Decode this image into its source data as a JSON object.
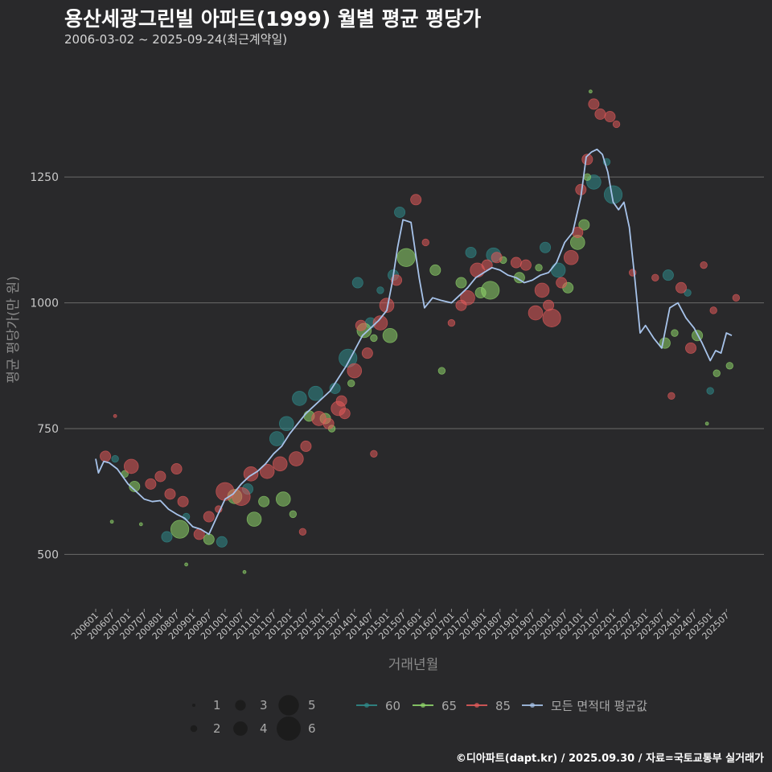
{
  "header": {
    "title": "용산세광그린빌 아파트(1999) 월별 평균 평당가",
    "subtitle": "2006-03-02 ~ 2025-09-24(최근계약일)"
  },
  "footer": {
    "credit": "©디아파트(dapt.kr) / 2025.09.30 / 자료=국토교통부 실거래가"
  },
  "colors": {
    "background": "#29292b",
    "grid": "#6a6a6a",
    "area_60": "#2f8a8a",
    "area_65": "#8ed46a",
    "area_85": "#e05a5a",
    "avg_line": "#a7c3ea"
  },
  "chart_data": {
    "type": "scatter",
    "title": "용산세광그린빌 아파트(1999) 월별 평균 평당가",
    "xlabel": "거래년월",
    "ylabel": "평균 평당가(만 원)",
    "ylim": [
      400,
      1450
    ],
    "yticks": [
      500,
      750,
      1000,
      1250
    ],
    "x_start": "2006-01",
    "x_end": "2025-09",
    "xtick_labels": [
      "200601",
      "200607",
      "200701",
      "200707",
      "200801",
      "200807",
      "200901",
      "200907",
      "201001",
      "201007",
      "201101",
      "201107",
      "201201",
      "201207",
      "201301",
      "201307",
      "201401",
      "201407",
      "201501",
      "201507",
      "201601",
      "201607",
      "201701",
      "201707",
      "201801",
      "201807",
      "201901",
      "201907",
      "202001",
      "202007",
      "202101",
      "202107",
      "202201",
      "202207",
      "202301",
      "202307",
      "202401",
      "202407",
      "202501",
      "202507"
    ],
    "size_legend": {
      "title": "",
      "labels": [
        "1",
        "2",
        "3",
        "4",
        "5",
        "6"
      ]
    },
    "color_legend": [
      {
        "name": "60",
        "color": "#2f8a8a"
      },
      {
        "name": "65",
        "color": "#8ed46a"
      },
      {
        "name": "85",
        "color": "#e05a5a"
      },
      {
        "name": "모든 면적대 평균값",
        "color": "#a7c3ea"
      }
    ],
    "average_line": {
      "name": "모든 면적대 평균값",
      "points": [
        [
          "2006-01",
          690
        ],
        [
          "2006-02",
          662
        ],
        [
          "2006-04",
          685
        ],
        [
          "2006-06",
          682
        ],
        [
          "2006-09",
          670
        ],
        [
          "2007-01",
          640
        ],
        [
          "2007-04",
          625
        ],
        [
          "2007-07",
          610
        ],
        [
          "2007-10",
          605
        ],
        [
          "2008-01",
          607
        ],
        [
          "2008-04",
          590
        ],
        [
          "2008-07",
          580
        ],
        [
          "2008-10",
          572
        ],
        [
          "2009-01",
          555
        ],
        [
          "2009-04",
          550
        ],
        [
          "2009-07",
          540
        ],
        [
          "2009-10",
          575
        ],
        [
          "2010-01",
          610
        ],
        [
          "2010-04",
          620
        ],
        [
          "2010-07",
          640
        ],
        [
          "2010-10",
          655
        ],
        [
          "2011-01",
          665
        ],
        [
          "2011-04",
          680
        ],
        [
          "2011-07",
          700
        ],
        [
          "2011-10",
          715
        ],
        [
          "2012-01",
          740
        ],
        [
          "2012-04",
          760
        ],
        [
          "2012-07",
          780
        ],
        [
          "2012-10",
          795
        ],
        [
          "2013-01",
          810
        ],
        [
          "2013-04",
          825
        ],
        [
          "2013-07",
          850
        ],
        [
          "2013-10",
          875
        ],
        [
          "2014-01",
          905
        ],
        [
          "2014-04",
          935
        ],
        [
          "2014-07",
          950
        ],
        [
          "2014-10",
          965
        ],
        [
          "2015-01",
          985
        ],
        [
          "2015-03",
          1040
        ],
        [
          "2015-05",
          1110
        ],
        [
          "2015-07",
          1165
        ],
        [
          "2015-10",
          1160
        ],
        [
          "2016-01",
          1050
        ],
        [
          "2016-03",
          990
        ],
        [
          "2016-06",
          1010
        ],
        [
          "2016-09",
          1005
        ],
        [
          "2017-01",
          1000
        ],
        [
          "2017-04",
          1015
        ],
        [
          "2017-07",
          1030
        ],
        [
          "2017-10",
          1050
        ],
        [
          "2018-01",
          1060
        ],
        [
          "2018-04",
          1070
        ],
        [
          "2018-07",
          1065
        ],
        [
          "2018-10",
          1055
        ],
        [
          "2019-01",
          1050
        ],
        [
          "2019-04",
          1040
        ],
        [
          "2019-07",
          1045
        ],
        [
          "2019-10",
          1055
        ],
        [
          "2020-01",
          1060
        ],
        [
          "2020-04",
          1080
        ],
        [
          "2020-07",
          1120
        ],
        [
          "2020-10",
          1140
        ],
        [
          "2021-01",
          1210
        ],
        [
          "2021-03",
          1290
        ],
        [
          "2021-05",
          1300
        ],
        [
          "2021-07",
          1305
        ],
        [
          "2021-09",
          1295
        ],
        [
          "2021-11",
          1260
        ],
        [
          "2022-01",
          1200
        ],
        [
          "2022-03",
          1185
        ],
        [
          "2022-05",
          1200
        ],
        [
          "2022-07",
          1150
        ],
        [
          "2022-09",
          1050
        ],
        [
          "2022-11",
          940
        ],
        [
          "2023-01",
          955
        ],
        [
          "2023-04",
          930
        ],
        [
          "2023-07",
          910
        ],
        [
          "2023-10",
          990
        ],
        [
          "2024-01",
          1000
        ],
        [
          "2024-04",
          970
        ],
        [
          "2024-07",
          950
        ],
        [
          "2024-10",
          920
        ],
        [
          "2025-01",
          885
        ],
        [
          "2025-03",
          905
        ],
        [
          "2025-05",
          900
        ],
        [
          "2025-07",
          940
        ],
        [
          "2025-09",
          935
        ]
      ]
    },
    "series": [
      {
        "name": "60",
        "points": [
          [
            2006.6,
            690,
            2
          ],
          [
            2008.2,
            535,
            3
          ],
          [
            2008.8,
            575,
            2
          ],
          [
            2009.9,
            525,
            3
          ],
          [
            2010.7,
            630,
            3
          ],
          [
            2011.6,
            730,
            4
          ],
          [
            2011.9,
            760,
            4
          ],
          [
            2012.3,
            810,
            4
          ],
          [
            2012.8,
            820,
            4
          ],
          [
            2013.4,
            830,
            3
          ],
          [
            2013.8,
            890,
            5
          ],
          [
            2014.1,
            1040,
            3
          ],
          [
            2014.5,
            960,
            3
          ],
          [
            2014.8,
            1025,
            2
          ],
          [
            2015.2,
            1055,
            3
          ],
          [
            2015.4,
            1180,
            3
          ],
          [
            2017.6,
            1100,
            3
          ],
          [
            2018.3,
            1095,
            4
          ],
          [
            2019.9,
            1110,
            3
          ],
          [
            2020.3,
            1065,
            4
          ],
          [
            2021.4,
            1240,
            4
          ],
          [
            2021.8,
            1280,
            2
          ],
          [
            2022.0,
            1215,
            5
          ],
          [
            2023.7,
            1055,
            3
          ],
          [
            2024.3,
            1020,
            2
          ],
          [
            2025.0,
            825,
            2
          ]
        ]
      },
      {
        "name": "65",
        "points": [
          [
            2006.5,
            565,
            1
          ],
          [
            2006.9,
            660,
            2
          ],
          [
            2007.2,
            635,
            3
          ],
          [
            2007.4,
            560,
            1
          ],
          [
            2008.6,
            550,
            5
          ],
          [
            2008.8,
            480,
            1
          ],
          [
            2009.5,
            530,
            3
          ],
          [
            2010.3,
            615,
            4
          ],
          [
            2010.6,
            465,
            1
          ],
          [
            2010.9,
            570,
            4
          ],
          [
            2011.2,
            605,
            3
          ],
          [
            2011.8,
            610,
            4
          ],
          [
            2012.1,
            580,
            2
          ],
          [
            2012.6,
            775,
            3
          ],
          [
            2013.1,
            770,
            3
          ],
          [
            2013.3,
            750,
            2
          ],
          [
            2013.9,
            840,
            2
          ],
          [
            2014.3,
            945,
            4
          ],
          [
            2014.6,
            930,
            2
          ],
          [
            2015.1,
            935,
            4
          ],
          [
            2015.6,
            1090,
            5
          ],
          [
            2016.5,
            1065,
            3
          ],
          [
            2016.7,
            865,
            2
          ],
          [
            2017.3,
            1040,
            3
          ],
          [
            2017.9,
            1020,
            3
          ],
          [
            2018.2,
            1025,
            5
          ],
          [
            2018.6,
            1085,
            2
          ],
          [
            2019.1,
            1050,
            3
          ],
          [
            2019.7,
            1070,
            2
          ],
          [
            2020.6,
            1030,
            3
          ],
          [
            2020.9,
            1120,
            4
          ],
          [
            2021.1,
            1155,
            3
          ],
          [
            2021.2,
            1250,
            2
          ],
          [
            2021.3,
            1420,
            1
          ],
          [
            2023.6,
            920,
            3
          ],
          [
            2023.9,
            940,
            2
          ],
          [
            2024.6,
            935,
            3
          ],
          [
            2024.9,
            760,
            1
          ],
          [
            2025.2,
            860,
            2
          ],
          [
            2025.6,
            875,
            2
          ]
        ]
      },
      {
        "name": "85",
        "points": [
          [
            2006.3,
            695,
            3
          ],
          [
            2006.6,
            775,
            1
          ],
          [
            2007.1,
            675,
            4
          ],
          [
            2007.7,
            640,
            3
          ],
          [
            2008.0,
            655,
            3
          ],
          [
            2008.3,
            620,
            3
          ],
          [
            2008.5,
            670,
            3
          ],
          [
            2008.7,
            605,
            3
          ],
          [
            2009.2,
            540,
            3
          ],
          [
            2009.5,
            575,
            3
          ],
          [
            2009.8,
            590,
            2
          ],
          [
            2010.0,
            625,
            5
          ],
          [
            2010.5,
            615,
            5
          ],
          [
            2010.8,
            660,
            4
          ],
          [
            2011.3,
            665,
            4
          ],
          [
            2011.7,
            680,
            4
          ],
          [
            2012.2,
            690,
            4
          ],
          [
            2012.4,
            545,
            2
          ],
          [
            2012.5,
            715,
            3
          ],
          [
            2012.9,
            770,
            4
          ],
          [
            2013.2,
            760,
            3
          ],
          [
            2013.5,
            790,
            4
          ],
          [
            2013.6,
            805,
            3
          ],
          [
            2013.7,
            780,
            3
          ],
          [
            2014.0,
            865,
            4
          ],
          [
            2014.2,
            955,
            3
          ],
          [
            2014.4,
            900,
            3
          ],
          [
            2014.6,
            700,
            2
          ],
          [
            2014.8,
            960,
            4
          ],
          [
            2015.0,
            995,
            4
          ],
          [
            2015.3,
            1045,
            3
          ],
          [
            2015.9,
            1205,
            3
          ],
          [
            2016.2,
            1120,
            2
          ],
          [
            2017.0,
            960,
            2
          ],
          [
            2017.3,
            995,
            3
          ],
          [
            2017.5,
            1010,
            4
          ],
          [
            2017.8,
            1065,
            4
          ],
          [
            2018.1,
            1075,
            3
          ],
          [
            2018.4,
            1090,
            3
          ],
          [
            2019.0,
            1080,
            3
          ],
          [
            2019.3,
            1075,
            3
          ],
          [
            2019.6,
            980,
            4
          ],
          [
            2019.8,
            1025,
            4
          ],
          [
            2020.0,
            995,
            3
          ],
          [
            2020.1,
            970,
            5
          ],
          [
            2020.4,
            1040,
            3
          ],
          [
            2020.7,
            1090,
            4
          ],
          [
            2020.9,
            1140,
            3
          ],
          [
            2021.0,
            1225,
            3
          ],
          [
            2021.2,
            1285,
            3
          ],
          [
            2021.4,
            1395,
            3
          ],
          [
            2021.6,
            1375,
            3
          ],
          [
            2021.9,
            1370,
            3
          ],
          [
            2022.1,
            1355,
            2
          ],
          [
            2022.6,
            1060,
            2
          ],
          [
            2023.3,
            1050,
            2
          ],
          [
            2023.8,
            815,
            2
          ],
          [
            2024.1,
            1030,
            3
          ],
          [
            2024.4,
            910,
            3
          ],
          [
            2024.8,
            1075,
            2
          ],
          [
            2025.1,
            985,
            2
          ],
          [
            2025.8,
            1010,
            2
          ]
        ]
      }
    ]
  }
}
